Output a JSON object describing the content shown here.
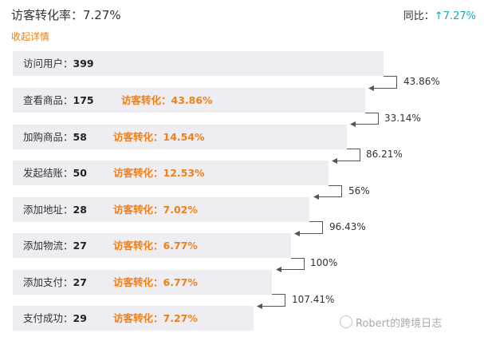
{
  "header": {
    "title": "访客转化率：7.27%",
    "yoy_label": "同比：",
    "yoy_arrow": "↑",
    "yoy_value": "7.27%",
    "collapse": "收起详情"
  },
  "funnel": [
    {
      "step": "访问用户：",
      "count": "399",
      "conv": ""
    },
    {
      "step": "查看商品：",
      "count": "175",
      "conv": "访客转化：43.86%"
    },
    {
      "step": "加购商品：",
      "count": "58",
      "conv": "访客转化：14.54%"
    },
    {
      "step": "发起结账：",
      "count": "50",
      "conv": "访客转化：12.53%"
    },
    {
      "step": "添加地址：",
      "count": "28",
      "conv": "访客转化：7.02%"
    },
    {
      "step": "添加物流：",
      "count": "27",
      "conv": "访客转化：6.77%"
    },
    {
      "step": "添加支付：",
      "count": "27",
      "conv": "访客转化：6.77%"
    },
    {
      "step": "支付成功：",
      "count": "29",
      "conv": "访客转化：7.27%"
    }
  ],
  "step_rates": [
    "43.86%",
    "33.14%",
    "86.21%",
    "56%",
    "96.43%",
    "100%",
    "107.41%"
  ],
  "watermark": "Robert的跨境日志",
  "colors": {
    "accent": "#f07f18",
    "up": "#19a8b8",
    "bar": "#eeeef2",
    "connector": "#555555"
  }
}
